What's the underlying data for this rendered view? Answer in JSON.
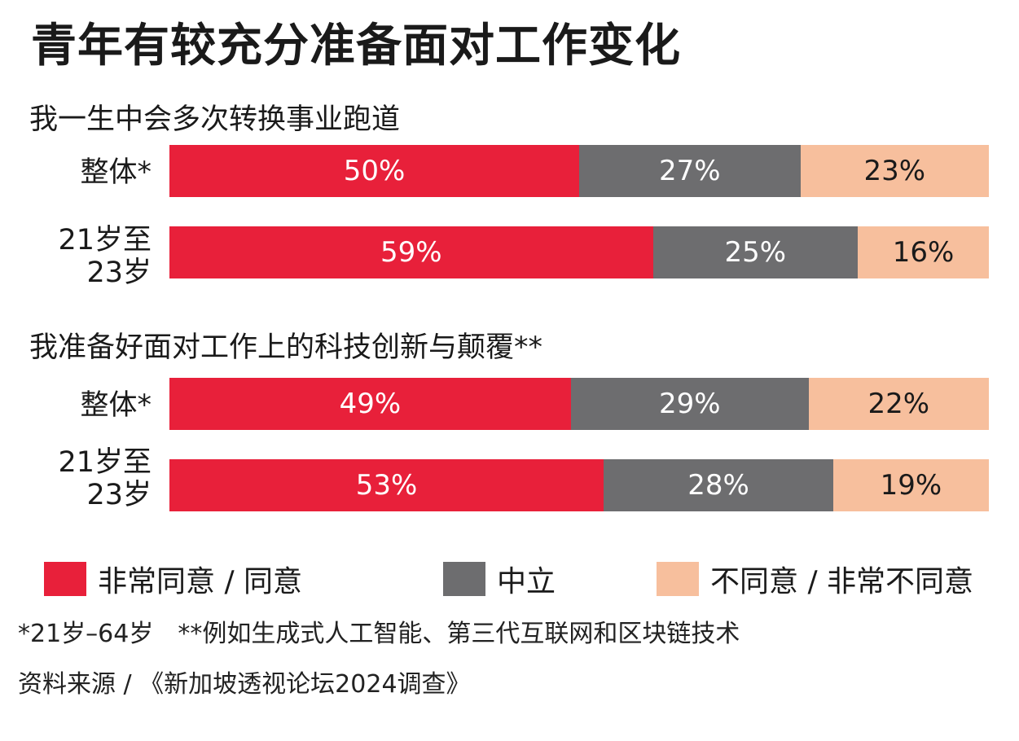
{
  "chart_data": {
    "type": "bar",
    "orientation": "horizontal",
    "stacked": true,
    "percent": true,
    "title": "青年有较充分准备面对工作变化",
    "legend_placement": "bottom",
    "series": [
      {
        "name": "非常同意 / 同意",
        "color": "#e8203a"
      },
      {
        "name": "中立",
        "color": "#6d6d6f"
      },
      {
        "name": "不同意 / 非常不同意",
        "color": "#f7bf9d"
      }
    ],
    "groups": [
      {
        "title": "我一生中会多次转换事业跑道",
        "rows": [
          {
            "label": "整体*",
            "values": [
              50,
              27,
              23
            ]
          },
          {
            "label": "21岁至\n23岁",
            "values": [
              59,
              25,
              16
            ]
          }
        ]
      },
      {
        "title": "我准备好面对工作上的科技创新与颠覆**",
        "rows": [
          {
            "label": "整体*",
            "values": [
              49,
              29,
              22
            ]
          },
          {
            "label": "21岁至\n23岁",
            "values": [
              53,
              28,
              19
            ]
          }
        ]
      }
    ],
    "value_suffix": "%"
  },
  "footnotes": {
    "note": "*21岁–64岁　**例如生成式人工智能、第三代互联网和区块链技术",
    "source": "资料来源 / 《新加坡透视论坛2024调查》"
  }
}
